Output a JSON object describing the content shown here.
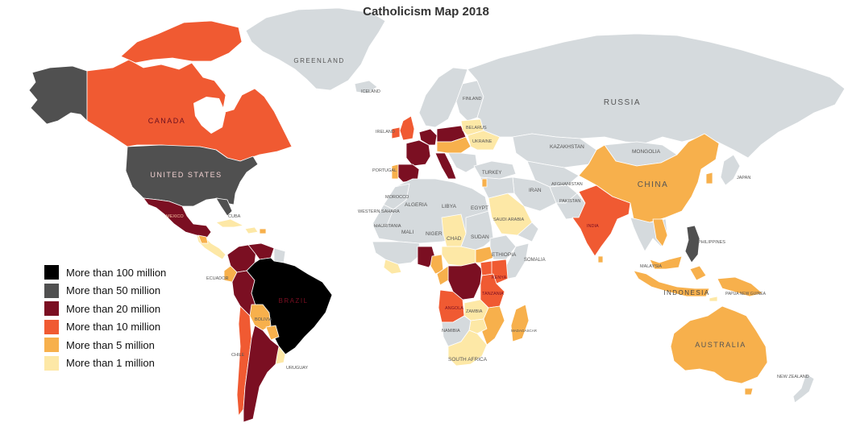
{
  "map": {
    "title": "Catholicism Map 2018",
    "colors": {
      "no_data": "#d5dadd",
      "gt_100m": "#000000",
      "gt_50m": "#505050",
      "gt_20m": "#7b0f22",
      "gt_10m": "#f05a32",
      "gt_5m": "#f7b04c",
      "gt_1m": "#fde8a6"
    },
    "legend": [
      {
        "label": "More than 100 million",
        "color": "#000000"
      },
      {
        "label": "More than 50 million",
        "color": "#505050"
      },
      {
        "label": "More than 20 million",
        "color": "#7b0f22"
      },
      {
        "label": "More than 10 million",
        "color": "#f05a32"
      },
      {
        "label": "More than 5 million",
        "color": "#f7b04c"
      },
      {
        "label": "More than 1 million",
        "color": "#fde8a6"
      }
    ],
    "labels": {
      "greenland": "GREENLAND",
      "russia": "RUSSIA",
      "canada": "CANADA",
      "united_states": "UNITED STATES",
      "mexico": "MEXICO",
      "brazil": "BRAZIL",
      "bolivia": "BOLIVIA",
      "chile": "CHILE",
      "uruguay": "URUGUAY",
      "ecuador": "ECUADOR",
      "cuba": "CUBA",
      "iceland": "ICELAND",
      "finland": "FINLAND",
      "ukraine": "UKRAINE",
      "belarus": "BELARUS",
      "turkey": "TURKEY",
      "kazakhstan": "KAZAKHSTAN",
      "mongolia": "MONGOLIA",
      "china": "CHINA",
      "japan": "JAPAN",
      "iran": "IRAN",
      "india": "INDIA",
      "pakistan": "PAKISTAN",
      "afghanistan": "AFGHANISTAN",
      "philippines": "PHILIPPINES",
      "malaysia": "MALAYSIA",
      "indonesia": "INDONESIA",
      "papua_new_guinea": "PAPUA NEW GUINEA",
      "australia": "AUSTRALIA",
      "new_zealand": "NEW ZEALAND",
      "algeria": "ALGERIA",
      "libya": "LIBYA",
      "egypt": "EGYPT",
      "saudi_arabia": "SAUDI ARABIA",
      "mali": "MALI",
      "niger": "NIGER",
      "chad": "CHAD",
      "sudan": "SUDAN",
      "ethiopia": "ETHIOPIA",
      "somalia": "SOMALIA",
      "kenya": "KENYA",
      "tanzania": "TANZANIA",
      "angola": "ANGOLA",
      "zambia": "ZAMBIA",
      "namibia": "NAMIBIA",
      "south_africa": "SOUTH AFRICA",
      "madagascar": "MADAGASCAR",
      "mauritania": "MAURITANIA",
      "morocco": "MOROCCO",
      "western_sahara": "WESTERN SAHARA",
      "portugal": "PORTUGAL",
      "ireland": "IRELAND"
    }
  }
}
